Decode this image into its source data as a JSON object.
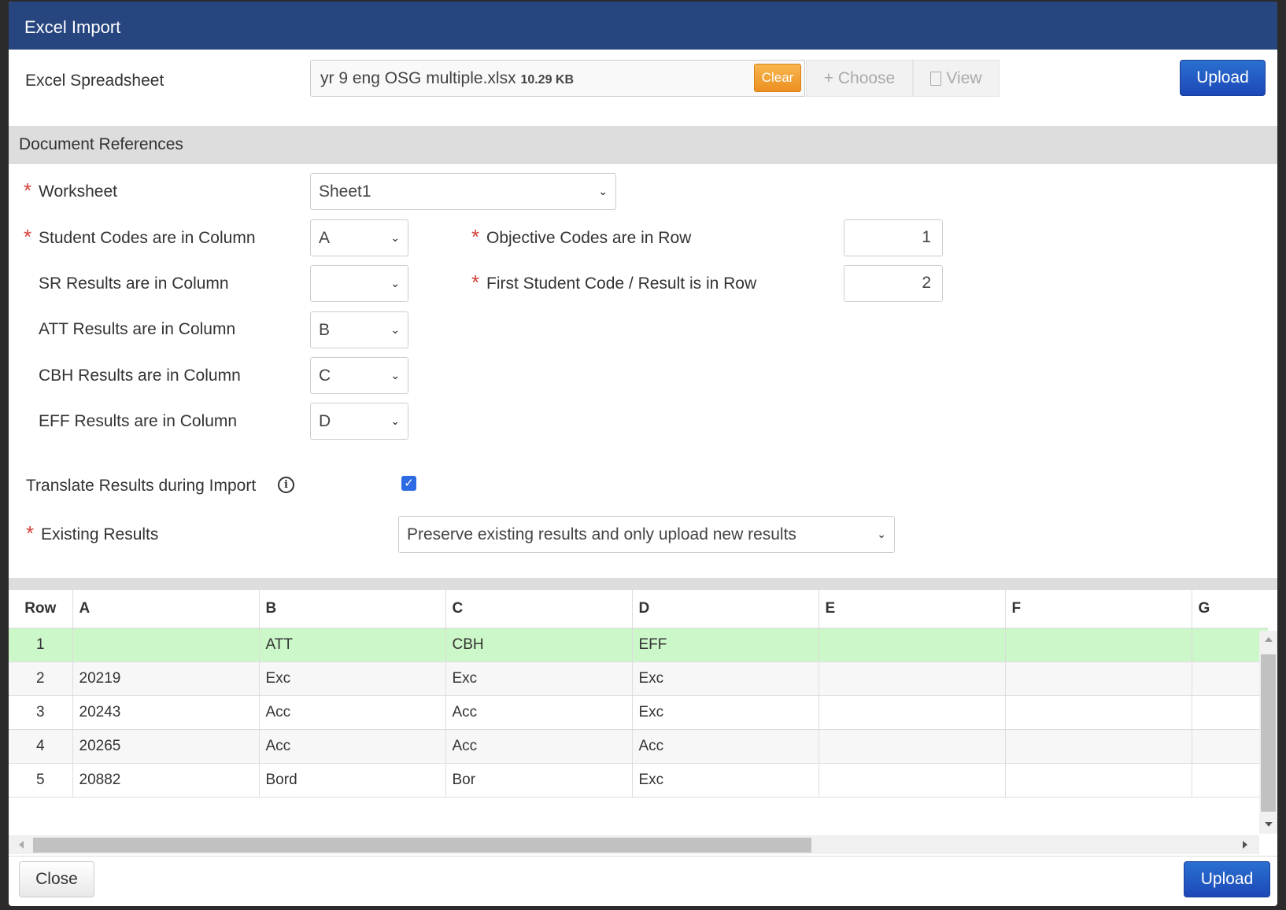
{
  "dialog": {
    "title": "Excel Import"
  },
  "spreadsheet": {
    "label": "Excel Spreadsheet",
    "file_name": "yr 9 eng OSG multiple.xlsx",
    "file_size": "10.29 KB",
    "clear_label": "Clear",
    "choose_label": "+ Choose",
    "view_label": "View",
    "upload_label": "Upload"
  },
  "section": {
    "title": "Document References"
  },
  "form": {
    "worksheet": {
      "label": "Worksheet",
      "value": "Sheet1"
    },
    "student_codes": {
      "label": "Student Codes are in Column",
      "value": "A"
    },
    "sr": {
      "label": "SR Results are in Column",
      "value": ""
    },
    "att": {
      "label": "ATT Results are in Column",
      "value": "B"
    },
    "cbh": {
      "label": "CBH Results are in Column",
      "value": "C"
    },
    "eff": {
      "label": "EFF Results are in Column",
      "value": "D"
    },
    "objective_row": {
      "label": "Objective Codes are in Row",
      "value": "1"
    },
    "first_student_row": {
      "label": "First Student Code / Result is in Row",
      "value": "2"
    },
    "translate": {
      "label": "Translate Results during Import",
      "checked": true
    },
    "existing": {
      "label": "Existing Results",
      "value": "Preserve existing results and only upload new results"
    }
  },
  "table": {
    "headers": [
      "Row",
      "A",
      "B",
      "C",
      "D",
      "E",
      "F",
      "G"
    ],
    "rows": [
      [
        "1",
        "",
        "ATT",
        "CBH",
        "EFF",
        "",
        "",
        ""
      ],
      [
        "2",
        "20219",
        "Exc",
        "Exc",
        "Exc",
        "",
        "",
        ""
      ],
      [
        "3",
        "20243",
        "Acc",
        "Acc",
        "Exc",
        "",
        "",
        ""
      ],
      [
        "4",
        "20265",
        "Acc",
        "Acc",
        "Acc",
        "",
        "",
        ""
      ],
      [
        "5",
        "20882",
        "Bord",
        "Bor",
        "Exc",
        "",
        "",
        ""
      ]
    ]
  },
  "footer": {
    "close_label": "Close",
    "upload_label": "Upload"
  },
  "colors": {
    "header": "#27467f",
    "clear": "#f0a030",
    "highlight_row": "#ccf7c8",
    "primary": "#1d48b8"
  }
}
